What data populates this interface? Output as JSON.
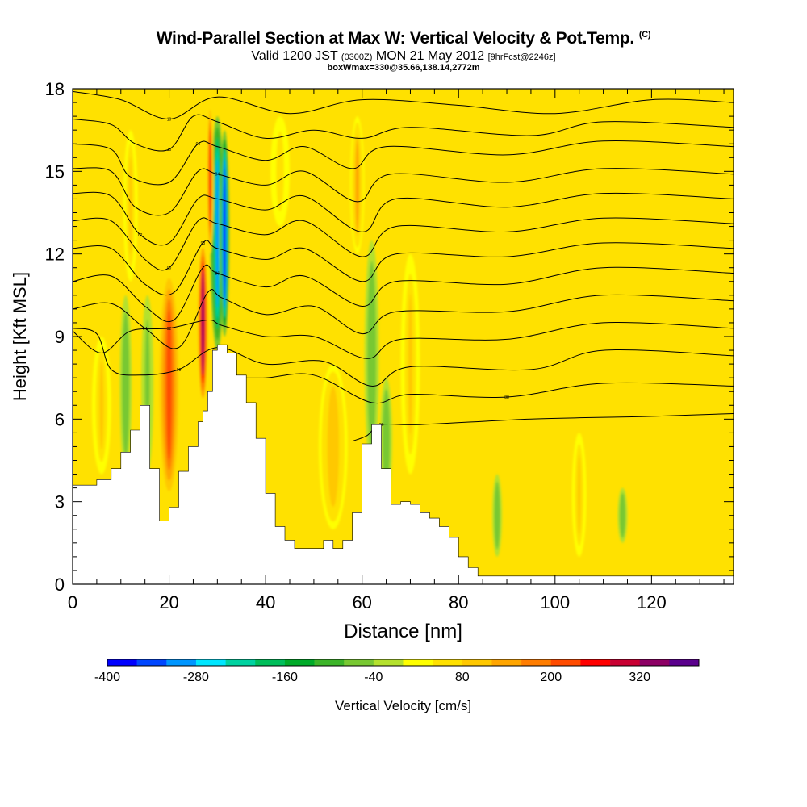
{
  "header": {
    "title": "Wind-Parallel Section at Max W: Vertical Velocity & Pot.Temp.",
    "title_tag": "(C)",
    "subtitle_main": "Valid 1200 JST",
    "subtitle_z": "(0300Z)",
    "subtitle_date": "MON 21 May 2012",
    "subtitle_fcst": "[9hrFcst@2246z]",
    "subtitle2": "boxWmax=330@35.66,138.14,2772m"
  },
  "chart_data": {
    "type": "heatmap",
    "xlabel": "Distance [nm]",
    "ylabel": "Height [Kft MSL]",
    "xlim": [
      0,
      137
    ],
    "ylim": [
      0,
      18
    ],
    "x_ticks": [
      "0",
      "20",
      "40",
      "60",
      "80",
      "100",
      "120"
    ],
    "y_ticks": [
      "0",
      "3",
      "6",
      "9",
      "12",
      "15",
      "18"
    ],
    "colorbar": {
      "label": "Vertical Velocity [cm/s]",
      "tick_labels": [
        "-400",
        "-280",
        "-160",
        "-40",
        "80",
        "200",
        "320"
      ],
      "levels": [
        -400,
        -360,
        -320,
        -280,
        -240,
        -200,
        -160,
        -120,
        -80,
        -40,
        0,
        40,
        80,
        120,
        160,
        200,
        240,
        280,
        320,
        360
      ],
      "colors": [
        "#0000ff",
        "#0046ff",
        "#0096ff",
        "#00e6ff",
        "#00d2a0",
        "#00be5a",
        "#00aa28",
        "#3cb428",
        "#78c832",
        "#b4e12d",
        "#ffff00",
        "#ffe100",
        "#ffc800",
        "#ffa500",
        "#ff7d00",
        "#ff4b00",
        "#ff0000",
        "#c80032",
        "#8c0064",
        "#5a008c"
      ]
    },
    "terrain": {
      "x": [
        0,
        5,
        8,
        10,
        12,
        14,
        16,
        18,
        20,
        22,
        24,
        26,
        27,
        28,
        29,
        30,
        32,
        34,
        36,
        38,
        40,
        42,
        44,
        46,
        48,
        50,
        52,
        54,
        56,
        58,
        60,
        62,
        64,
        66,
        68,
        70,
        72,
        74,
        76,
        78,
        80,
        82,
        84,
        86,
        88,
        90,
        100,
        110,
        120,
        130,
        137
      ],
      "height_kft": [
        3.6,
        3.8,
        4.2,
        4.8,
        5.6,
        6.5,
        4.2,
        2.3,
        2.8,
        4.1,
        5.0,
        5.9,
        6.3,
        7.0,
        8.5,
        8.7,
        8.4,
        7.6,
        6.6,
        5.3,
        3.3,
        2.1,
        1.6,
        1.3,
        1.3,
        1.3,
        1.6,
        1.3,
        1.6,
        2.6,
        5.1,
        5.8,
        4.2,
        2.9,
        3.0,
        2.9,
        2.6,
        2.4,
        2.1,
        1.7,
        1.0,
        0.6,
        0.3,
        0.3,
        0.3,
        0.3,
        0.3,
        0.3,
        0.3,
        0.3,
        0.3
      ]
    },
    "velocity_features": [
      {
        "x": 20,
        "z_bottom": 3.0,
        "z_top": 11.5,
        "width_nm": 5,
        "w_cms": 200
      },
      {
        "x": 27,
        "z_bottom": 6.5,
        "z_top": 12.5,
        "width_nm": 2.5,
        "w_cms": 330
      },
      {
        "x": 30,
        "z_bottom": 8.5,
        "z_top": 17.0,
        "width_nm": 3,
        "w_cms": -300
      },
      {
        "x": 31.5,
        "z_bottom": 9.0,
        "z_top": 16.5,
        "width_nm": 2,
        "w_cms": -380
      },
      {
        "x": 28.5,
        "z_bottom": 12.0,
        "z_top": 17.5,
        "width_nm": 1.5,
        "w_cms": 240
      },
      {
        "x": 11,
        "z_bottom": 4.0,
        "z_top": 10.5,
        "width_nm": 2.5,
        "w_cms": -80
      },
      {
        "x": 6,
        "z_bottom": 4.0,
        "z_top": 9.0,
        "width_nm": 4,
        "w_cms": 80
      },
      {
        "x": 12,
        "z_bottom": 11.0,
        "z_top": 16.5,
        "width_nm": 3,
        "w_cms": 80
      },
      {
        "x": 15.5,
        "z_bottom": 4.0,
        "z_top": 10.5,
        "width_nm": 2.5,
        "w_cms": -60
      },
      {
        "x": 54,
        "z_bottom": 2.0,
        "z_top": 8.0,
        "width_nm": 6,
        "w_cms": 110
      },
      {
        "x": 59,
        "z_bottom": 12.0,
        "z_top": 17.0,
        "width_nm": 3,
        "w_cms": 120
      },
      {
        "x": 62,
        "z_bottom": 4.0,
        "z_top": 12.5,
        "width_nm": 3,
        "w_cms": -80
      },
      {
        "x": 65,
        "z_bottom": 3.0,
        "z_top": 7.5,
        "width_nm": 2.5,
        "w_cms": -70
      },
      {
        "x": 70,
        "z_bottom": 4.0,
        "z_top": 12.0,
        "width_nm": 4,
        "w_cms": 80
      },
      {
        "x": 88,
        "z_bottom": 1.0,
        "z_top": 4.0,
        "width_nm": 2,
        "w_cms": -70
      },
      {
        "x": 105,
        "z_bottom": 1.0,
        "z_top": 5.5,
        "width_nm": 3,
        "w_cms": 90
      },
      {
        "x": 114,
        "z_bottom": 1.5,
        "z_top": 3.5,
        "width_nm": 2,
        "w_cms": -80
      },
      {
        "x": 43,
        "z_bottom": 13.0,
        "z_top": 17.0,
        "width_nm": 4,
        "w_cms": 50
      }
    ],
    "theta_contours": [
      {
        "label": "10",
        "pts": [
          [
            0,
            17.9
          ],
          [
            10,
            17.6
          ],
          [
            20,
            16.9
          ],
          [
            30,
            17.7
          ],
          [
            45,
            17.1
          ],
          [
            60,
            17.6
          ],
          [
            80,
            17.4
          ],
          [
            100,
            17.1
          ],
          [
            120,
            17.6
          ],
          [
            137,
            17.5
          ]
        ]
      },
      {
        "label": "10",
        "pts": [
          [
            0,
            16.9
          ],
          [
            8,
            16.7
          ],
          [
            13,
            16.0
          ],
          [
            20,
            15.8
          ],
          [
            25,
            17.0
          ],
          [
            30,
            16.8
          ],
          [
            40,
            16.2
          ],
          [
            50,
            16.5
          ],
          [
            60,
            16.2
          ],
          [
            70,
            16.6
          ],
          [
            95,
            16.3
          ],
          [
            110,
            16.8
          ],
          [
            137,
            16.6
          ]
        ]
      },
      {
        "label": "06",
        "pts": [
          [
            0,
            16.0
          ],
          [
            8,
            15.8
          ],
          [
            12,
            14.8
          ],
          [
            20,
            14.6
          ],
          [
            26,
            16.0
          ],
          [
            30,
            15.9
          ],
          [
            40,
            15.4
          ],
          [
            48,
            15.9
          ],
          [
            58,
            15.1
          ],
          [
            65,
            15.9
          ],
          [
            90,
            15.6
          ],
          [
            110,
            16.1
          ],
          [
            137,
            15.9
          ]
        ]
      },
      {
        "label": "04",
        "pts": [
          [
            0,
            15.1
          ],
          [
            8,
            15.0
          ],
          [
            13,
            13.7
          ],
          [
            20,
            13.5
          ],
          [
            26,
            15.0
          ],
          [
            30,
            14.9
          ],
          [
            40,
            14.5
          ],
          [
            48,
            15.0
          ],
          [
            59,
            13.9
          ],
          [
            66,
            14.9
          ],
          [
            90,
            14.6
          ],
          [
            110,
            15.1
          ],
          [
            137,
            14.9
          ]
        ]
      },
      {
        "label": "02",
        "pts": [
          [
            0,
            14.2
          ],
          [
            8,
            14.1
          ],
          [
            14,
            12.7
          ],
          [
            20,
            12.4
          ],
          [
            26,
            14.0
          ],
          [
            30,
            14.0
          ],
          [
            40,
            13.6
          ],
          [
            48,
            14.1
          ],
          [
            60,
            12.8
          ],
          [
            67,
            14.0
          ],
          [
            90,
            13.7
          ],
          [
            110,
            14.2
          ],
          [
            137,
            14.0
          ]
        ]
      },
      {
        "label": "00",
        "pts": [
          [
            0,
            13.2
          ],
          [
            8,
            13.2
          ],
          [
            15,
            11.8
          ],
          [
            20,
            11.5
          ],
          [
            26,
            13.2
          ],
          [
            30,
            13.1
          ],
          [
            40,
            12.7
          ],
          [
            48,
            13.2
          ],
          [
            60,
            11.9
          ],
          [
            67,
            13.0
          ],
          [
            90,
            12.8
          ],
          [
            110,
            13.3
          ],
          [
            137,
            13.1
          ]
        ]
      },
      {
        "label": "98",
        "pts": [
          [
            0,
            12.2
          ],
          [
            8,
            12.2
          ],
          [
            15,
            10.9
          ],
          [
            21,
            10.6
          ],
          [
            27,
            12.4
          ],
          [
            30,
            12.2
          ],
          [
            40,
            11.8
          ],
          [
            48,
            12.2
          ],
          [
            60,
            11.0
          ],
          [
            67,
            12.0
          ],
          [
            90,
            11.9
          ],
          [
            110,
            12.4
          ],
          [
            137,
            12.2
          ]
        ]
      },
      {
        "label": "96",
        "pts": [
          [
            0,
            11.0
          ],
          [
            8,
            11.2
          ],
          [
            15,
            10.1
          ],
          [
            21,
            9.6
          ],
          [
            27,
            11.5
          ],
          [
            30,
            11.3
          ],
          [
            40,
            10.8
          ],
          [
            48,
            11.2
          ],
          [
            60,
            10.1
          ],
          [
            67,
            11.0
          ],
          [
            90,
            10.9
          ],
          [
            110,
            11.5
          ],
          [
            137,
            11.3
          ]
        ]
      },
      {
        "label": "94",
        "pts": [
          [
            0,
            10.0
          ],
          [
            8,
            10.2
          ],
          [
            15,
            9.3
          ],
          [
            22,
            8.6
          ],
          [
            28,
            10.6
          ],
          [
            31,
            10.4
          ],
          [
            40,
            9.8
          ],
          [
            50,
            10.1
          ],
          [
            60,
            9.1
          ],
          [
            67,
            9.9
          ],
          [
            90,
            9.9
          ],
          [
            110,
            10.5
          ],
          [
            137,
            10.3
          ]
        ]
      },
      {
        "label": "92",
        "pts": [
          [
            0,
            9.2
          ],
          [
            6,
            8.4
          ],
          [
            12,
            9.2
          ],
          [
            20,
            9.3
          ],
          [
            28,
            9.6
          ],
          [
            31,
            9.4
          ],
          [
            40,
            9.0
          ],
          [
            50,
            9.0
          ],
          [
            61,
            8.2
          ],
          [
            68,
            8.9
          ],
          [
            90,
            8.9
          ],
          [
            110,
            9.5
          ],
          [
            137,
            9.3
          ]
        ]
      },
      {
        "label": "90",
        "pts": [
          [
            0,
            9.3
          ],
          [
            5,
            9.1
          ],
          [
            8,
            7.8
          ],
          [
            14,
            7.6
          ],
          [
            22,
            7.8
          ],
          [
            30,
            8.6
          ],
          [
            40,
            8.0
          ],
          [
            52,
            8.1
          ],
          [
            62,
            7.2
          ],
          [
            70,
            7.9
          ],
          [
            95,
            7.8
          ],
          [
            110,
            8.5
          ],
          [
            137,
            8.3
          ]
        ]
      },
      {
        "label": "88",
        "pts": [
          [
            34,
            7.5
          ],
          [
            40,
            7.5
          ],
          [
            50,
            7.6
          ],
          [
            62,
            6.6
          ],
          [
            70,
            6.9
          ],
          [
            90,
            6.8
          ],
          [
            110,
            7.3
          ],
          [
            137,
            7.2
          ]
        ]
      },
      {
        "label": "86",
        "pts": [
          [
            58,
            5.2
          ],
          [
            61,
            5.4
          ],
          [
            64,
            5.8
          ],
          [
            72,
            5.8
          ],
          [
            95,
            6.0
          ],
          [
            120,
            6.1
          ],
          [
            137,
            6.2
          ]
        ]
      }
    ]
  }
}
